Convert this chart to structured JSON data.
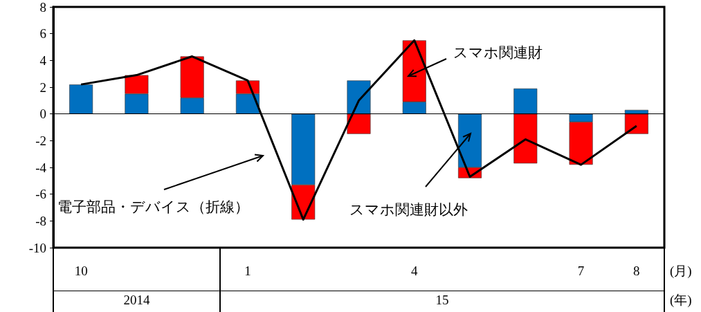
{
  "chart_data": {
    "type": "bar",
    "stacked": true,
    "categories": [
      "10",
      null,
      null,
      "1",
      null,
      null,
      "4",
      null,
      null,
      "7",
      "8"
    ],
    "xlabel": "(月)",
    "annotations": [
      "2014",
      "15",
      "(年)"
    ],
    "series": [
      {
        "name": "スマホ関連財以外",
        "color": "#0070c0",
        "values": [
          2.2,
          1.5,
          1.2,
          1.5,
          -5.3,
          2.5,
          0.9,
          -4.0,
          1.9,
          -0.6,
          0.3
        ]
      },
      {
        "name": "スマホ関連財",
        "color": "#ff0000",
        "values": [
          null,
          1.4,
          3.1,
          1.0,
          -2.6,
          -1.5,
          4.6,
          -0.8,
          -3.7,
          -3.2,
          -1.5
        ]
      },
      {
        "name": "電子部品・デバイス（折線）",
        "type": "line",
        "color": "#000000",
        "values": [
          2.2,
          2.9,
          4.3,
          2.5,
          -7.9,
          1.0,
          5.5,
          -4.7,
          -1.9,
          -3.8,
          -0.9
        ]
      }
    ],
    "ylim": [
      -10,
      8
    ],
    "yticks": [
      -10,
      -8,
      -6,
      -4,
      -2,
      0,
      2,
      4,
      6,
      8
    ],
    "ref_lines": [
      {
        "axis": "y",
        "value": 0,
        "color": "#000000",
        "line_style": "solid"
      }
    ],
    "grid": false,
    "legend": false,
    "marker": "none",
    "line_style": "solid"
  }
}
